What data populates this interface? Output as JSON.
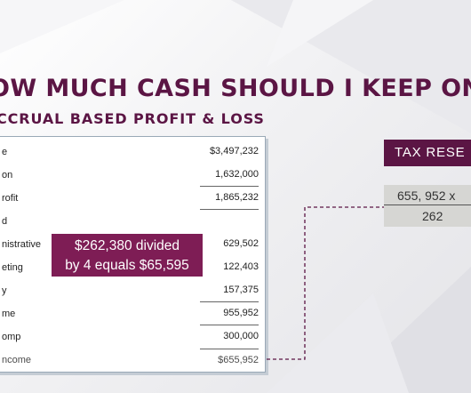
{
  "slide": {
    "title": "OW MUCH CASH SHOULD I KEEP ON HA",
    "subtitle": "CCRUAL BASED PROFIT & LOSS"
  },
  "profit_loss": {
    "rows": [
      {
        "label": "e",
        "value": "$3,497,232"
      },
      {
        "label": "on",
        "value": "1,632,000"
      },
      {
        "label": "rofit",
        "value": "1,865,232"
      },
      {
        "label": "d",
        "value": ""
      },
      {
        "label": "nistrative",
        "value": "629,502"
      },
      {
        "label": "eting",
        "value": "122,403"
      },
      {
        "label": "y",
        "value": "157,375"
      },
      {
        "label": "me",
        "value": "955,952"
      },
      {
        "label": "omp",
        "value": "300,000"
      },
      {
        "label": "ncome",
        "value": "$655,952"
      }
    ]
  },
  "callout": {
    "line1": "$262,380 divided",
    "line2": "by 4 equals $65,595"
  },
  "tax_reserve": {
    "label": "TAX RESE",
    "calc_line1": "655, 952 x",
    "calc_line2": "262"
  },
  "colors": {
    "brand": "#5b1544",
    "callout": "#7e1d55",
    "calc_box": "#d6d6d3"
  }
}
